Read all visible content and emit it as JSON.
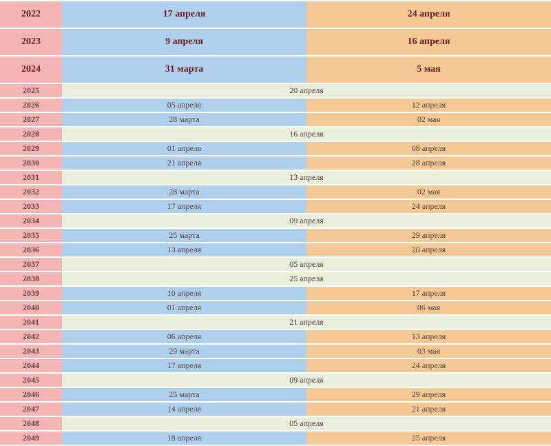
{
  "table": {
    "colors": {
      "year_bg": "#f5b5b5",
      "left_bg": "#aed0ed",
      "right_bg": "#f4c996",
      "merged_bg": "#e8f0dc",
      "text": "#5a3a3a",
      "bold_text": "#6a1a1a"
    },
    "rows": [
      {
        "year": "2022",
        "tall": true,
        "left": "17 апреля",
        "right": "24 апреля"
      },
      {
        "year": "2023",
        "tall": true,
        "left": "9 апреля",
        "right": "16 апреля"
      },
      {
        "year": "2024",
        "tall": true,
        "left": "31 марта",
        "right": "5 мая"
      },
      {
        "year": "2025",
        "merged": "20 апреля"
      },
      {
        "year": "2026",
        "left": "05 апреля",
        "right": "12 апреля"
      },
      {
        "year": "2027",
        "left": "28 марта",
        "right": "02 мая"
      },
      {
        "year": "2028",
        "merged": "16 апреля"
      },
      {
        "year": "2029",
        "left": "01 апреля",
        "right": "08 апреля"
      },
      {
        "year": "2030",
        "left": "21 апреля",
        "right": "28 апреля"
      },
      {
        "year": "2031",
        "merged": "13 апреля"
      },
      {
        "year": "2032",
        "left": "28 марта",
        "right": "02 мая"
      },
      {
        "year": "2033",
        "left": "17 апреля",
        "right": "24 апреля"
      },
      {
        "year": "2034",
        "merged": "09 апреля"
      },
      {
        "year": "2035",
        "left": "25 марта",
        "right": "29 апреля"
      },
      {
        "year": "2036",
        "left": "13 апреля",
        "right": "20 апреля"
      },
      {
        "year": "2037",
        "merged": "05 апреля"
      },
      {
        "year": "2038",
        "merged": "25 апреля"
      },
      {
        "year": "2039",
        "left": "10 апреля",
        "right": "17 апреля"
      },
      {
        "year": "2040",
        "left": "01 апреля",
        "right": "06 мая"
      },
      {
        "year": "2041",
        "merged": "21 апреля"
      },
      {
        "year": "2042",
        "left": "06 апреля",
        "right": "13 апреля"
      },
      {
        "year": "2043",
        "left": "29 марта",
        "right": "03 мая"
      },
      {
        "year": "2044",
        "left": "17 апреля",
        "right": "24 апреля"
      },
      {
        "year": "2045",
        "merged": "09 апреля"
      },
      {
        "year": "2046",
        "left": "25 марта",
        "right": "29 апреля"
      },
      {
        "year": "2047",
        "left": "14 апреля",
        "right": "21 апреля"
      },
      {
        "year": "2048",
        "merged": "05 апреля"
      },
      {
        "year": "2049",
        "left": "18 апреля",
        "right": "25 апреля"
      }
    ]
  }
}
